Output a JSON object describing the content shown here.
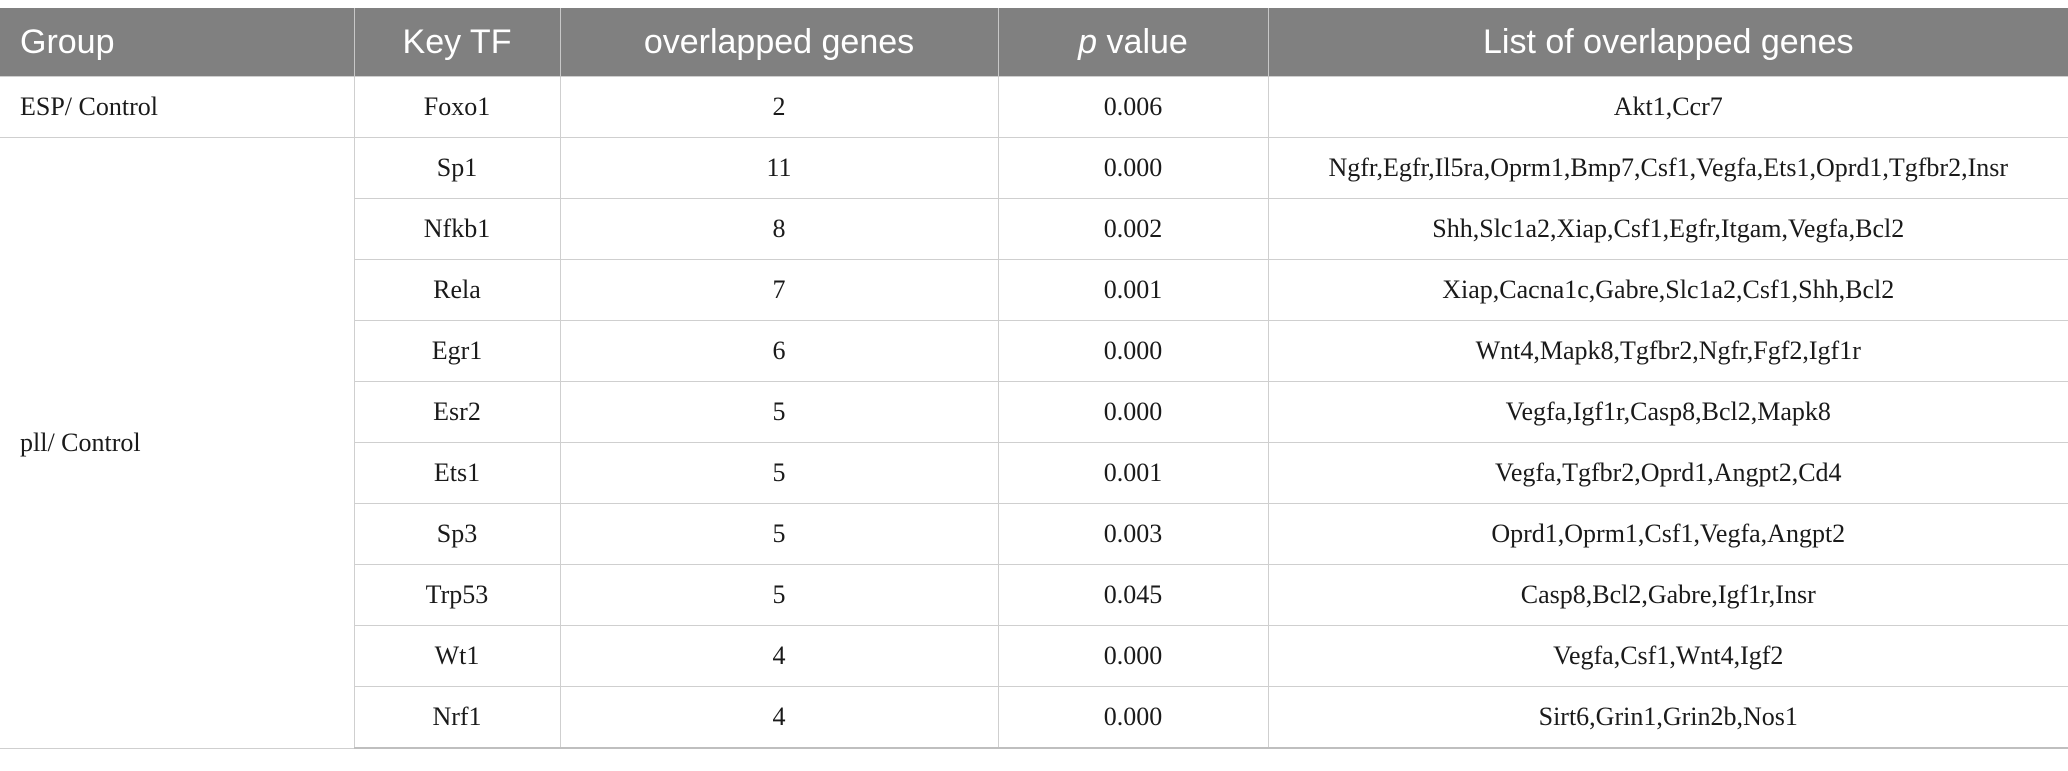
{
  "table": {
    "headers": {
      "group": "Group",
      "key_tf": "Key TF",
      "overlapped": "overlapped genes",
      "p_italic": "p",
      "p_rest": " value",
      "list": "List of overlapped genes"
    },
    "groups": [
      {
        "name": "ESP/ Control",
        "rows": [
          {
            "tf": "Foxo1",
            "count": "2",
            "p": "0.006",
            "genes": "Akt1,Ccr7"
          }
        ]
      },
      {
        "name": "pll/ Control",
        "rows": [
          {
            "tf": "Sp1",
            "count": "11",
            "p": "0.000",
            "genes": "Ngfr,Egfr,Il5ra,Oprm1,Bmp7,Csf1,Vegfa,Ets1,Oprd1,Tgfbr2,Insr"
          },
          {
            "tf": "Nfkb1",
            "count": "8",
            "p": "0.002",
            "genes": "Shh,Slc1a2,Xiap,Csf1,Egfr,Itgam,Vegfa,Bcl2"
          },
          {
            "tf": "Rela",
            "count": "7",
            "p": "0.001",
            "genes": "Xiap,Cacna1c,Gabre,Slc1a2,Csf1,Shh,Bcl2"
          },
          {
            "tf": "Egr1",
            "count": "6",
            "p": "0.000",
            "genes": "Wnt4,Mapk8,Tgfbr2,Ngfr,Fgf2,Igf1r"
          },
          {
            "tf": "Esr2",
            "count": "5",
            "p": "0.000",
            "genes": "Vegfa,Igf1r,Casp8,Bcl2,Mapk8"
          },
          {
            "tf": "Ets1",
            "count": "5",
            "p": "0.001",
            "genes": "Vegfa,Tgfbr2,Oprd1,Angpt2,Cd4"
          },
          {
            "tf": "Sp3",
            "count": "5",
            "p": "0.003",
            "genes": "Oprd1,Oprm1,Csf1,Vegfa,Angpt2"
          },
          {
            "tf": "Trp53",
            "count": "5",
            "p": "0.045",
            "genes": "Casp8,Bcl2,Gabre,Igf1r,Insr"
          },
          {
            "tf": "Wt1",
            "count": "4",
            "p": "0.000",
            "genes": "Vegfa,Csf1,Wnt4,Igf2"
          },
          {
            "tf": "Nrf1",
            "count": "4",
            "p": "0.000",
            "genes": "Sirt6,Grin1,Grin2b,Nos1"
          }
        ]
      }
    ]
  }
}
